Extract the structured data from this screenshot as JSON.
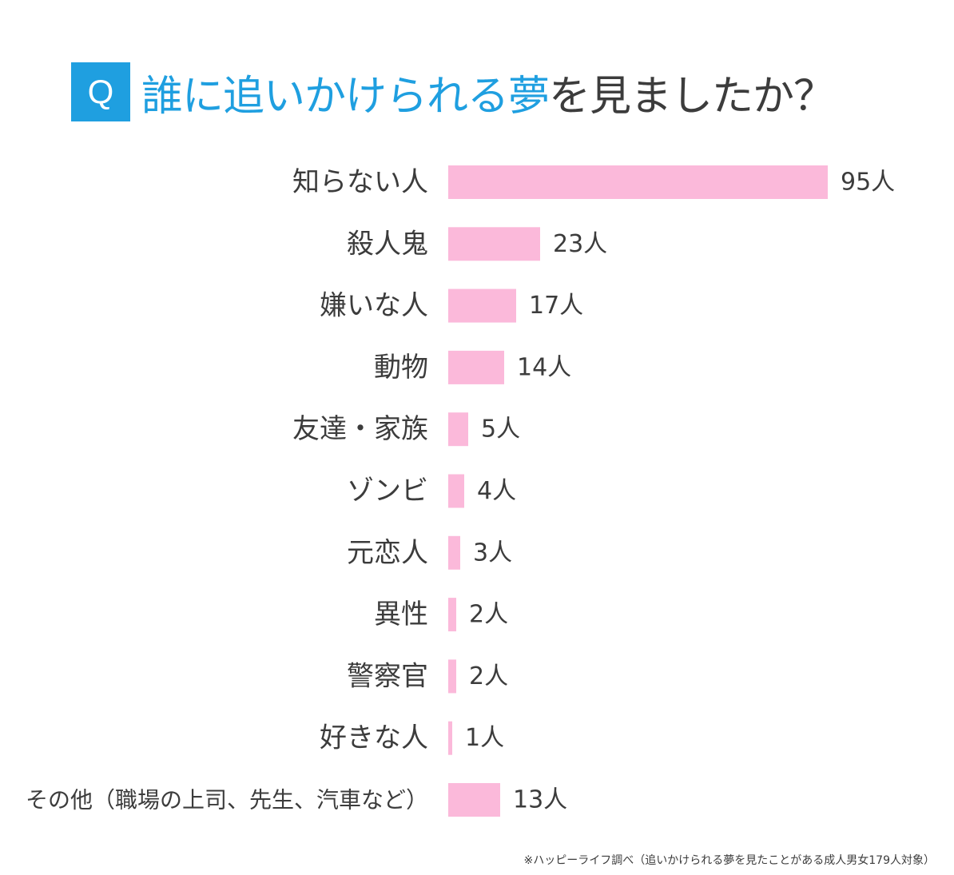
{
  "header": {
    "q_label": "Q",
    "title_highlight": "誰に追いかけられる夢",
    "title_rest": "を見ましたか？"
  },
  "colors": {
    "accent": "#1f9fe0",
    "bar": "#fbb9da",
    "text": "#3c3c3c"
  },
  "chart_data": {
    "type": "bar",
    "orientation": "horizontal",
    "categories": [
      "知らない人",
      "殺人鬼",
      "嫌いな人",
      "動物",
      "友達・家族",
      "ゾンビ",
      "元恋人",
      "異性",
      "警察官",
      "好きな人",
      "その他（職場の上司、先生、汽車など）"
    ],
    "values": [
      95,
      23,
      17,
      14,
      5,
      4,
      3,
      2,
      2,
      1,
      13
    ],
    "value_labels": [
      "95人",
      "23人",
      "17人",
      "14人",
      "5人",
      "4人",
      "3人",
      "2人",
      "2人",
      "1人",
      "13人"
    ],
    "unit": "人",
    "title": "誰に追いかけられる夢を見ましたか？",
    "xlabel": "",
    "ylabel": "",
    "grid": false,
    "legend": "none"
  },
  "footnote": "※ハッピーライフ調べ（追いかけられる夢を見たことがある成人男女179人対象）"
}
